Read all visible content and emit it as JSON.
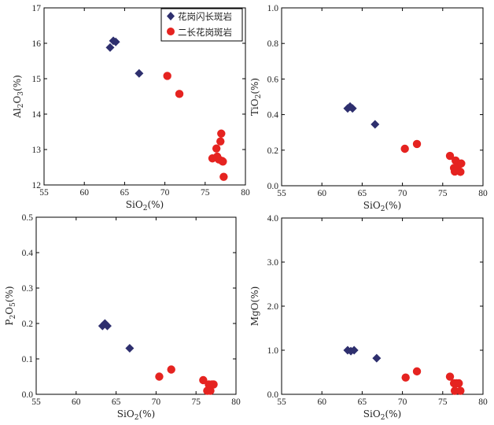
{
  "colors": {
    "diamond": "#2e2f6e",
    "circle": "#e52320",
    "axis": "#000000",
    "frame_bg": "#ffffff"
  },
  "legend": [
    {
      "label": "花岗闪长斑岩",
      "marker": "diamond"
    },
    {
      "label": "二长花岗斑岩",
      "marker": "circle"
    }
  ],
  "chart_data": [
    {
      "id": "al2o3",
      "type": "scatter",
      "xlabel": "SiO2(%)",
      "ylabel": "Al2O3(%)",
      "xlim": [
        55,
        80
      ],
      "ylim": [
        12,
        17
      ],
      "xticks": [
        "55",
        "60",
        "65",
        "70",
        "75",
        "80"
      ],
      "yticks": [
        "12",
        "13",
        "14",
        "15",
        "16",
        "17"
      ],
      "series": [
        {
          "name": "花岗闪长斑岩",
          "marker": "diamond",
          "x": [
            63.2,
            63.6,
            63.9,
            66.8
          ],
          "y": [
            15.88,
            16.07,
            16.04,
            15.15
          ]
        },
        {
          "name": "二长花岗斑岩",
          "marker": "circle",
          "x": [
            70.3,
            71.8,
            75.9,
            76.4,
            76.5,
            76.7,
            76.9,
            77.0,
            77.1,
            77.2,
            77.3
          ],
          "y": [
            15.08,
            14.57,
            12.75,
            13.03,
            12.8,
            12.72,
            13.23,
            13.45,
            12.68,
            12.66,
            12.23
          ]
        }
      ]
    },
    {
      "id": "tio2",
      "type": "scatter",
      "xlabel": "SiO2(%)",
      "ylabel": "TiO2(%)",
      "xlim": [
        55,
        80
      ],
      "ylim": [
        0.0,
        1.0
      ],
      "xticks": [
        "55",
        "60",
        "65",
        "70",
        "75",
        "80"
      ],
      "yticks": [
        "0.0",
        "0.2",
        "0.4",
        "0.6",
        "0.8",
        "1.0"
      ],
      "series": [
        {
          "name": "花岗闪长斑岩",
          "marker": "diamond",
          "x": [
            63.2,
            63.5,
            63.8,
            66.6
          ],
          "y": [
            0.435,
            0.445,
            0.435,
            0.345
          ]
        },
        {
          "name": "二长花岗斑岩",
          "marker": "circle",
          "x": [
            70.3,
            71.8,
            75.9,
            76.4,
            76.5,
            76.6,
            76.8,
            77.0,
            77.2,
            77.3
          ],
          "y": [
            0.208,
            0.235,
            0.168,
            0.1,
            0.08,
            0.142,
            0.092,
            0.118,
            0.078,
            0.125
          ]
        }
      ]
    },
    {
      "id": "p2o5",
      "type": "scatter",
      "xlabel": "SiO2(%)",
      "ylabel": "P2O5(%)",
      "xlim": [
        55,
        80
      ],
      "ylim": [
        0.0,
        0.5
      ],
      "xticks": [
        "55",
        "60",
        "65",
        "70",
        "75",
        "80"
      ],
      "yticks": [
        "0.0",
        "0.1",
        "0.2",
        "0.3",
        "0.4",
        "0.5"
      ],
      "series": [
        {
          "name": "花岗闪长斑岩",
          "marker": "diamond",
          "x": [
            63.3,
            63.6,
            63.9,
            66.7
          ],
          "y": [
            0.193,
            0.2,
            0.193,
            0.13
          ]
        },
        {
          "name": "二长花岗斑岩",
          "marker": "circle",
          "x": [
            70.4,
            71.9,
            75.9,
            76.4,
            76.6,
            76.8,
            77.0,
            77.2
          ],
          "y": [
            0.05,
            0.07,
            0.04,
            0.01,
            0.028,
            0.01,
            0.028,
            0.028
          ]
        }
      ]
    },
    {
      "id": "mgo",
      "type": "scatter",
      "xlabel": "SiO2(%)",
      "ylabel": "MgO(%)",
      "xlim": [
        55,
        80
      ],
      "ylim": [
        0.0,
        4.0
      ],
      "xticks": [
        "55",
        "60",
        "65",
        "70",
        "75",
        "80"
      ],
      "yticks": [
        "0.0",
        "1.0",
        "2.0",
        "3.0",
        "4.0"
      ],
      "series": [
        {
          "name": "花岗闪长斑岩",
          "marker": "diamond",
          "x": [
            63.2,
            63.6,
            64.0,
            66.8
          ],
          "y": [
            1.0,
            0.98,
            1.0,
            0.82
          ]
        },
        {
          "name": "二长花岗斑岩",
          "marker": "circle",
          "x": [
            70.4,
            71.8,
            75.9,
            76.4,
            76.5,
            76.7,
            77.0,
            77.2
          ],
          "y": [
            0.38,
            0.52,
            0.4,
            0.25,
            0.08,
            0.25,
            0.25,
            0.08
          ]
        }
      ]
    }
  ]
}
